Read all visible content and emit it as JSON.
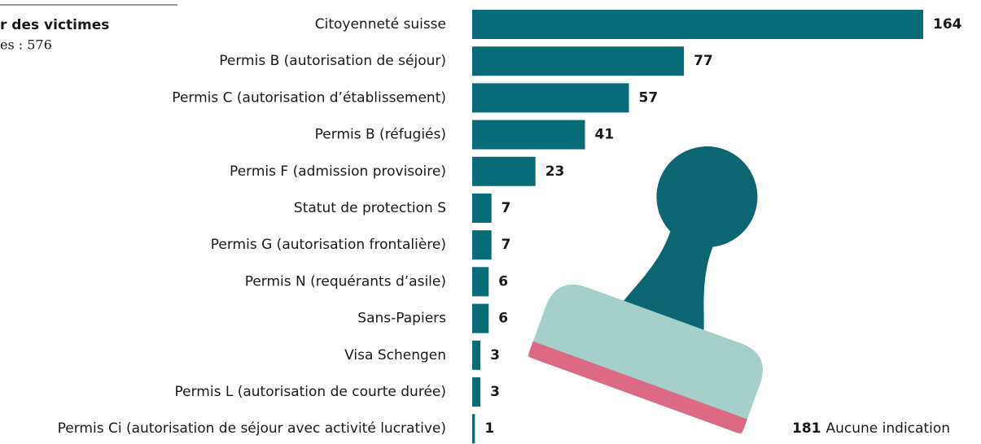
{
  "chart_data": {
    "type": "bar",
    "orientation": "horizontal",
    "title": "r des victimes",
    "subtitle": "es : 576",
    "categories": [
      "Citoyenneté suisse",
      "Permis B (autorisation de séjour)",
      "Permis C (autorisation d’établissement)",
      "Permis B (réfugiés)",
      "Permis F (admission provisoire)",
      "Statut de protection S",
      "Permis G (autorisation frontalière)",
      "Permis N (requérants d’asile)",
      "Sans-Papiers",
      "Visa Schengen",
      "Permis L (autorisation de courte durée)",
      "Permis Ci (autorisation de séjour avec activité lucrative)"
    ],
    "values": [
      164,
      77,
      57,
      41,
      23,
      7,
      7,
      6,
      6,
      3,
      3,
      1
    ],
    "color": "#086b78",
    "annotation": {
      "value": 181,
      "text": "Aucune indication"
    }
  }
}
